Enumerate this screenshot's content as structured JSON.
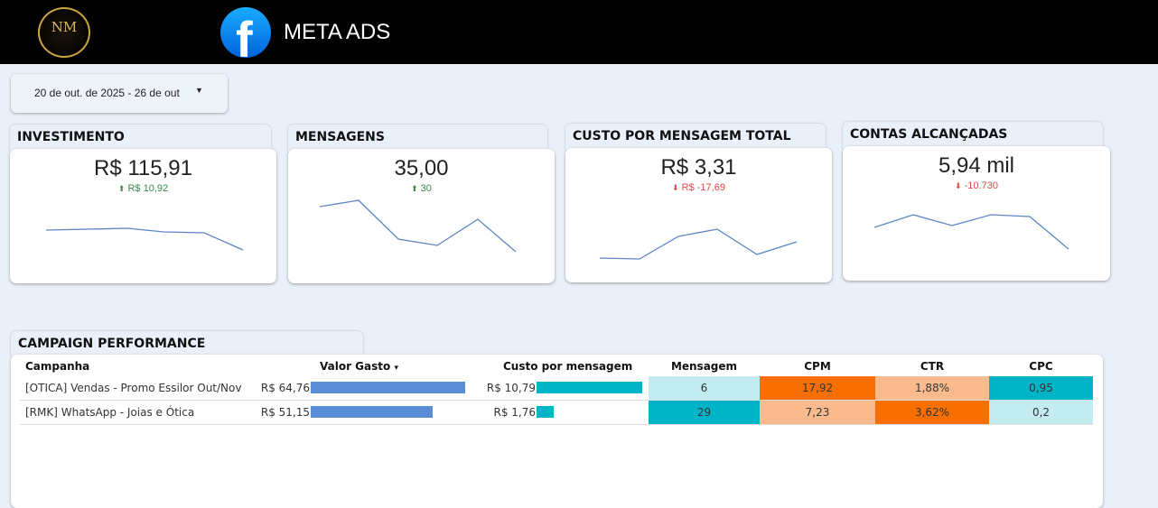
{
  "header": {
    "logo_text": "NM",
    "title": "META ADS",
    "fb_icon": "facebook-logo-icon"
  },
  "date_range": {
    "value": "20 de out. de 2025 - 26 de out"
  },
  "scorecards": [
    {
      "title": "INVESTIMENTO",
      "value": "R$ 115,91",
      "delta": "R$ 10,92",
      "direction": "up"
    },
    {
      "title": "MENSAGENS",
      "value": "35,00",
      "delta": "30",
      "direction": "up"
    },
    {
      "title": "CUSTO POR MENSAGEM TOTAL",
      "value": "R$ 3,31",
      "delta": "R$ -17,69",
      "direction": "down"
    },
    {
      "title": "CONTAS ALCANÇADAS",
      "value": "5,94 mil",
      "delta": "-10.730",
      "direction": "down"
    }
  ],
  "table": {
    "title": "CAMPAIGN PERFORMANCE",
    "columns": [
      "Campanha",
      "Valor Gasto",
      "Custo por mensagem",
      "Mensagem",
      "CPM",
      "CTR",
      "CPC"
    ],
    "sort_indicator": "▾",
    "rows": [
      {
        "campanha": "[OTICA] Vendas - Promo Essilor Out/Nov",
        "valor": "R$ 64,76",
        "valor_num": 64.76,
        "custo": "R$ 10,79",
        "custo_num": 10.79,
        "mensagem": "6",
        "cpm": "17,92",
        "ctr": "1,88%",
        "cpc": "0,95"
      },
      {
        "campanha": "[RMK] WhatsApp - Joias e Ótica",
        "valor": "R$ 51,15",
        "valor_num": 51.15,
        "custo": "R$ 1,76",
        "custo_num": 1.76,
        "mensagem": "29",
        "cpm": "7,23",
        "ctr": "3,62%",
        "cpc": "0,2"
      }
    ]
  },
  "colors": {
    "bar_blue": "#5b8dd6",
    "bar_teal": "#00b4c8",
    "heat_high_teal": "#00b4c8",
    "heat_low_teal": "#c2ecf0",
    "heat_high_orange": "#f76f00",
    "heat_low_orange": "#f9bb8e"
  }
}
